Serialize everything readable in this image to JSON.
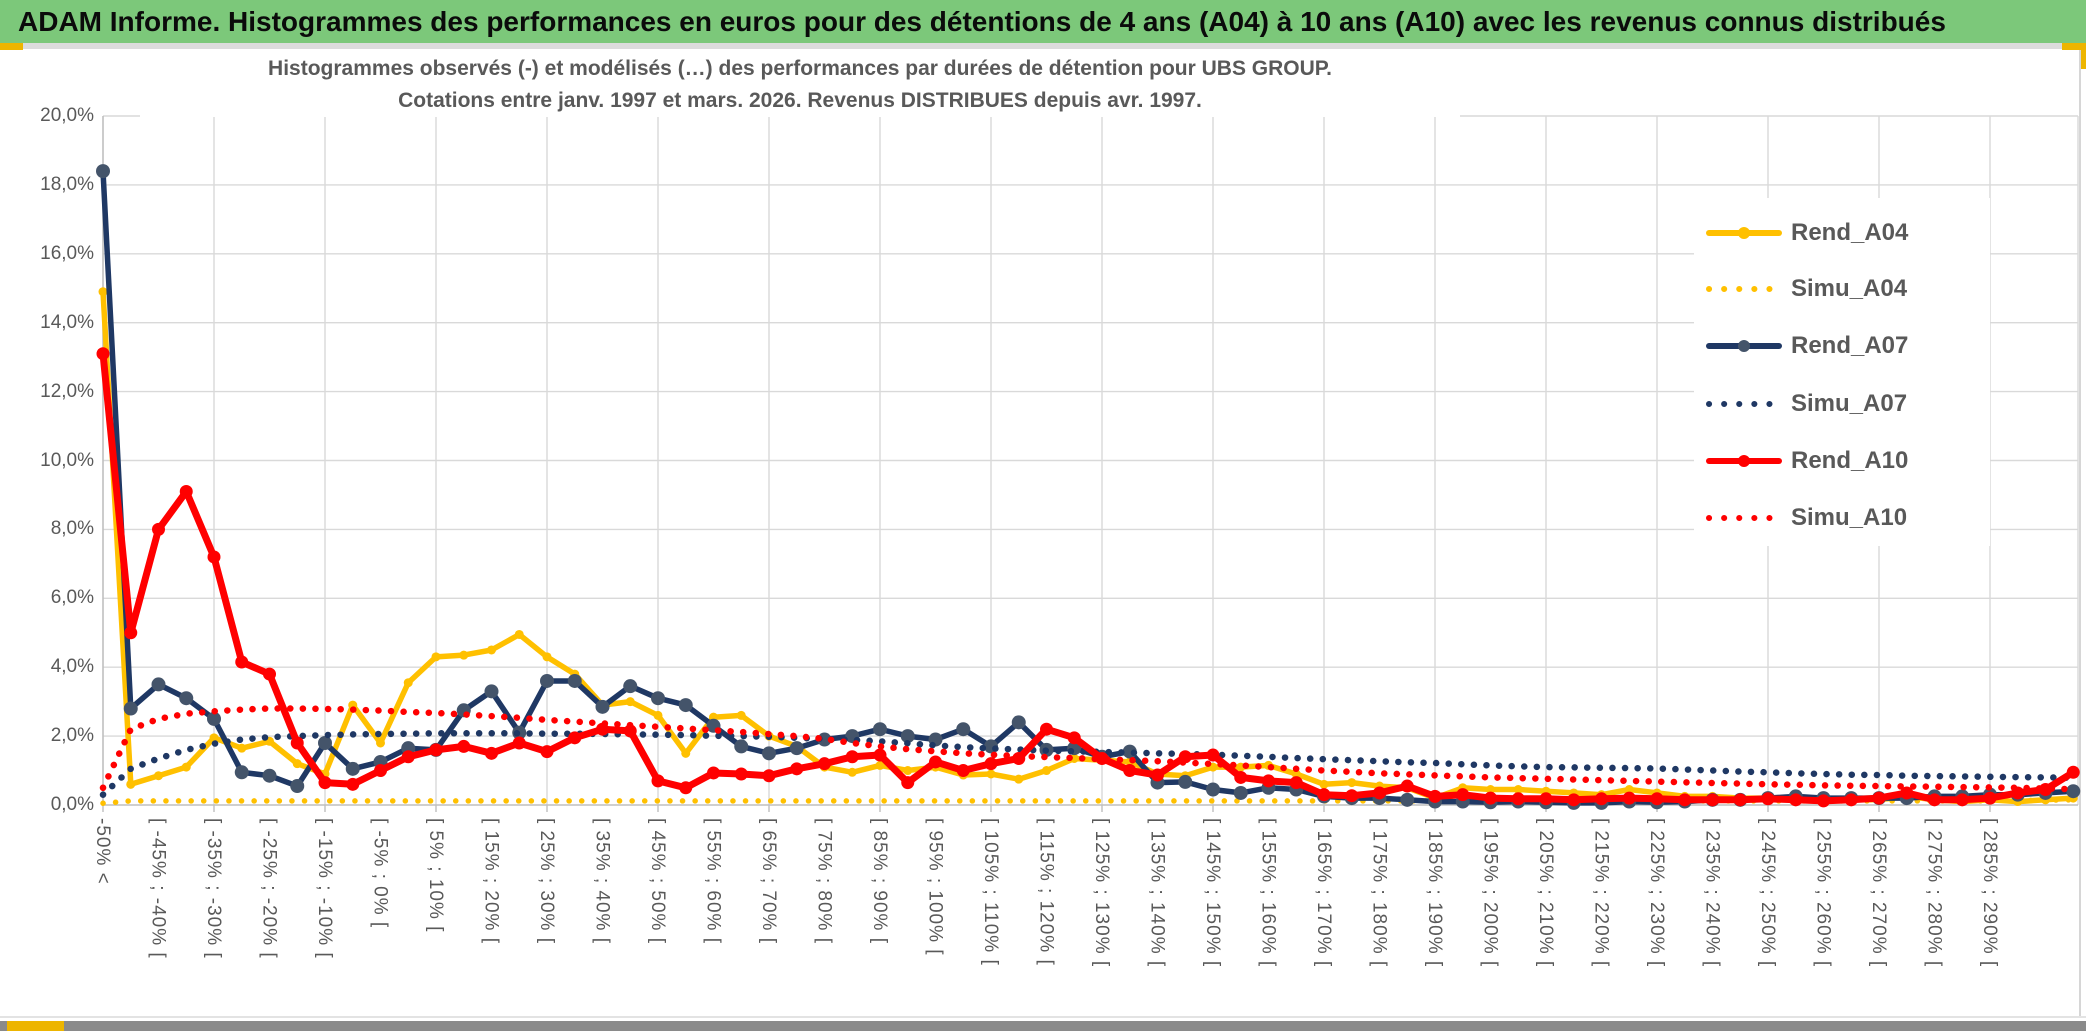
{
  "window": {
    "title": "ADAM Informe. Histogrammes des performances en euros pour des détentions de 4 ans (A04) à 10 ans (A10) avec les revenus connus distribués"
  },
  "chart": {
    "title_line1": "Histogrammes observés (-) et modélisés (…) des performances par durées de détention pour UBS GROUP.",
    "title_line2": "Cotations entre janv. 1997 et mars. 2026. Revenus DISTRIBUES depuis avr. 1997."
  },
  "colors": {
    "header_green": "#7CC87A",
    "accent_amber": "#EDB500",
    "text_gray": "#595959",
    "gridline": "#D9D9D9",
    "axis": "#BFBFBF",
    "gold": "#FFC000",
    "navy": "#1F3864",
    "navy_marker": "#44546A",
    "red": "#FF0000"
  },
  "chart_data": {
    "type": "line",
    "title": "Histogrammes observés (-) et modélisés (…) des performances par durées de détention pour UBS GROUP. Cotations entre janv. 1997 et mars. 2026. Revenus DISTRIBUES depuis avr. 1997.",
    "grid": true,
    "legend_position": "right",
    "y_axis": {
      "min": 0,
      "max": 20,
      "step": 2,
      "tick_labels": [
        "0,0%",
        "2,0%",
        "4,0%",
        "6,0%",
        "8,0%",
        "10,0%",
        "12,0%",
        "14,0%",
        "16,0%",
        "18,0%",
        "20,0%"
      ]
    },
    "x_label_every": 2,
    "n_points": 72,
    "x_labels": [
      "-50% <",
      "[ -45% ; -40% [",
      "[ -35% ; -30% [",
      "[ -25% ; -20% [",
      "[ -15% ; -10% [",
      "[ -5% ; 0% [",
      "[ 5% ; 10% [",
      "[ 15% ; 20% [",
      "[ 25% ; 30% [",
      "[ 35% ; 40% [",
      "[ 45% ; 50% [",
      "[ 55% ; 60% [",
      "[ 65% ; 70% [",
      "[ 75% ; 80% [",
      "[ 85% ; 90% [",
      "[ 95% ; 100% [",
      "[ 105% ; 110% [",
      "[ 115% ; 120% [",
      "[ 125% ; 130% [",
      "[ 135% ; 140% [",
      "[ 145% ; 150% [",
      "[ 155% ; 160% [",
      "[ 165% ; 170% [",
      "[ 175% ; 180% [",
      "[ 185% ; 190% [",
      "[ 195% ; 200% [",
      "[ 205% ; 210% [",
      "[ 215% ; 220% [",
      "[ 225% ; 230% [",
      "[ 235% ; 240% [",
      "[ 245% ; 250% [",
      "[ 255% ; 260% [",
      "[ 265% ; 270% [",
      "[ 275% ; 280% [",
      "[ 285% ; 290% ["
    ],
    "series": [
      {
        "name": "Rend_A04",
        "color": "#FFC000",
        "style": "solid",
        "marker": true,
        "marker_color": "#FFC000",
        "values": [
          14.9,
          0.6,
          0.85,
          1.1,
          1.95,
          1.65,
          1.85,
          1.2,
          0.9,
          2.9,
          1.8,
          3.55,
          4.3,
          4.35,
          4.5,
          4.95,
          4.3,
          3.8,
          2.9,
          3.0,
          2.6,
          1.5,
          2.55,
          2.6,
          2.0,
          1.7,
          1.1,
          0.95,
          1.15,
          1.0,
          1.1,
          0.87,
          0.9,
          0.75,
          1.0,
          1.35,
          1.3,
          1.25,
          0.9,
          0.85,
          1.1,
          1.1,
          1.15,
          0.9,
          0.6,
          0.65,
          0.55,
          0.5,
          0.2,
          0.5,
          0.45,
          0.45,
          0.4,
          0.35,
          0.3,
          0.45,
          0.35,
          0.25,
          0.25,
          0.2,
          0.2,
          0.15,
          0.2,
          0.15,
          0.15,
          0.25,
          0.15,
          0.1,
          0.15,
          0.1,
          0.15,
          0.2
        ]
      },
      {
        "name": "Simu_A04",
        "color": "#FFC000",
        "style": "dotted",
        "marker": false,
        "values": [
          0.05,
          0.12,
          0.12,
          0.12,
          0.12,
          0.12,
          0.12,
          0.12,
          0.12,
          0.12,
          0.12,
          0.12,
          0.12,
          0.12,
          0.12,
          0.12,
          0.12,
          0.12,
          0.12,
          0.12,
          0.12,
          0.12,
          0.12,
          0.12,
          0.12,
          0.12,
          0.12,
          0.12,
          0.12,
          0.12,
          0.12,
          0.12,
          0.12,
          0.12,
          0.12,
          0.12,
          0.12,
          0.12,
          0.12,
          0.12,
          0.12,
          0.12,
          0.12,
          0.12,
          0.12,
          0.12,
          0.12,
          0.12,
          0.12,
          0.12,
          0.12,
          0.12,
          0.12,
          0.12,
          0.12,
          0.12,
          0.12,
          0.12,
          0.12,
          0.12,
          0.12,
          0.12,
          0.12,
          0.12,
          0.12,
          0.12,
          0.12,
          0.12,
          0.12,
          0.13,
          0.14,
          0.15
        ]
      },
      {
        "name": "Rend_A07",
        "color": "#1F3864",
        "style": "solid",
        "marker": true,
        "marker_color": "#44546A",
        "values": [
          18.4,
          2.8,
          3.5,
          3.1,
          2.5,
          0.95,
          0.85,
          0.55,
          1.8,
          1.05,
          1.25,
          1.65,
          1.6,
          2.75,
          3.3,
          2.1,
          3.6,
          3.6,
          2.85,
          3.45,
          3.1,
          2.9,
          2.3,
          1.7,
          1.5,
          1.65,
          1.9,
          2.0,
          2.2,
          2.0,
          1.9,
          2.2,
          1.7,
          2.4,
          1.6,
          1.65,
          1.4,
          1.55,
          0.65,
          0.67,
          0.45,
          0.35,
          0.5,
          0.45,
          0.25,
          0.2,
          0.2,
          0.15,
          0.1,
          0.1,
          0.08,
          0.1,
          0.08,
          0.06,
          0.06,
          0.1,
          0.08,
          0.1,
          0.15,
          0.15,
          0.2,
          0.25,
          0.2,
          0.2,
          0.2,
          0.2,
          0.25,
          0.25,
          0.3,
          0.3,
          0.35,
          0.4
        ]
      },
      {
        "name": "Simu_A07",
        "color": "#1F3864",
        "style": "dotted",
        "marker": false,
        "values": [
          0.3,
          1.05,
          1.35,
          1.6,
          1.78,
          1.9,
          1.97,
          2.0,
          2.03,
          2.05,
          2.06,
          2.07,
          2.08,
          2.08,
          2.08,
          2.08,
          2.07,
          2.07,
          2.06,
          2.05,
          2.04,
          2.03,
          2.01,
          2.0,
          1.98,
          1.95,
          1.92,
          1.89,
          1.85,
          1.79,
          1.73,
          1.68,
          1.64,
          1.61,
          1.58,
          1.56,
          1.54,
          1.52,
          1.5,
          1.48,
          1.46,
          1.43,
          1.4,
          1.36,
          1.33,
          1.3,
          1.27,
          1.24,
          1.22,
          1.18,
          1.15,
          1.12,
          1.1,
          1.09,
          1.08,
          1.07,
          1.06,
          1.03,
          1.0,
          0.97,
          0.95,
          0.92,
          0.9,
          0.88,
          0.87,
          0.85,
          0.84,
          0.83,
          0.82,
          0.81,
          0.8,
          0.79
        ]
      },
      {
        "name": "Rend_A10",
        "color": "#FF0000",
        "style": "solid",
        "marker": true,
        "marker_color": "#FF0000",
        "values": [
          13.1,
          5.0,
          8.0,
          9.1,
          7.2,
          4.15,
          3.8,
          1.8,
          0.65,
          0.6,
          1.0,
          1.4,
          1.6,
          1.7,
          1.5,
          1.8,
          1.55,
          1.95,
          2.2,
          2.15,
          0.7,
          0.5,
          0.93,
          0.9,
          0.85,
          1.05,
          1.2,
          1.4,
          1.45,
          0.65,
          1.25,
          1.0,
          1.2,
          1.35,
          2.2,
          1.95,
          1.35,
          1.0,
          0.87,
          1.4,
          1.45,
          0.8,
          0.7,
          0.65,
          0.3,
          0.27,
          0.35,
          0.55,
          0.25,
          0.3,
          0.2,
          0.18,
          0.18,
          0.15,
          0.18,
          0.2,
          0.18,
          0.15,
          0.15,
          0.15,
          0.18,
          0.15,
          0.12,
          0.15,
          0.2,
          0.35,
          0.15,
          0.15,
          0.2,
          0.35,
          0.45,
          0.95
        ]
      },
      {
        "name": "Simu_A10",
        "color": "#FF0000",
        "style": "dotted",
        "marker": false,
        "values": [
          0.5,
          2.2,
          2.5,
          2.65,
          2.72,
          2.77,
          2.8,
          2.8,
          2.79,
          2.77,
          2.74,
          2.7,
          2.67,
          2.63,
          2.58,
          2.53,
          2.47,
          2.42,
          2.37,
          2.32,
          2.27,
          2.22,
          2.17,
          2.12,
          2.06,
          2.0,
          1.92,
          1.8,
          1.7,
          1.62,
          1.56,
          1.5,
          1.46,
          1.42,
          1.39,
          1.36,
          1.33,
          1.3,
          1.27,
          1.23,
          1.19,
          1.15,
          1.1,
          1.05,
          1.0,
          0.96,
          0.92,
          0.89,
          0.86,
          0.83,
          0.8,
          0.78,
          0.76,
          0.74,
          0.72,
          0.7,
          0.68,
          0.66,
          0.64,
          0.62,
          0.6,
          0.59,
          0.57,
          0.56,
          0.55,
          0.54,
          0.53,
          0.52,
          0.51,
          0.5,
          0.48,
          0.46
        ]
      }
    ]
  }
}
